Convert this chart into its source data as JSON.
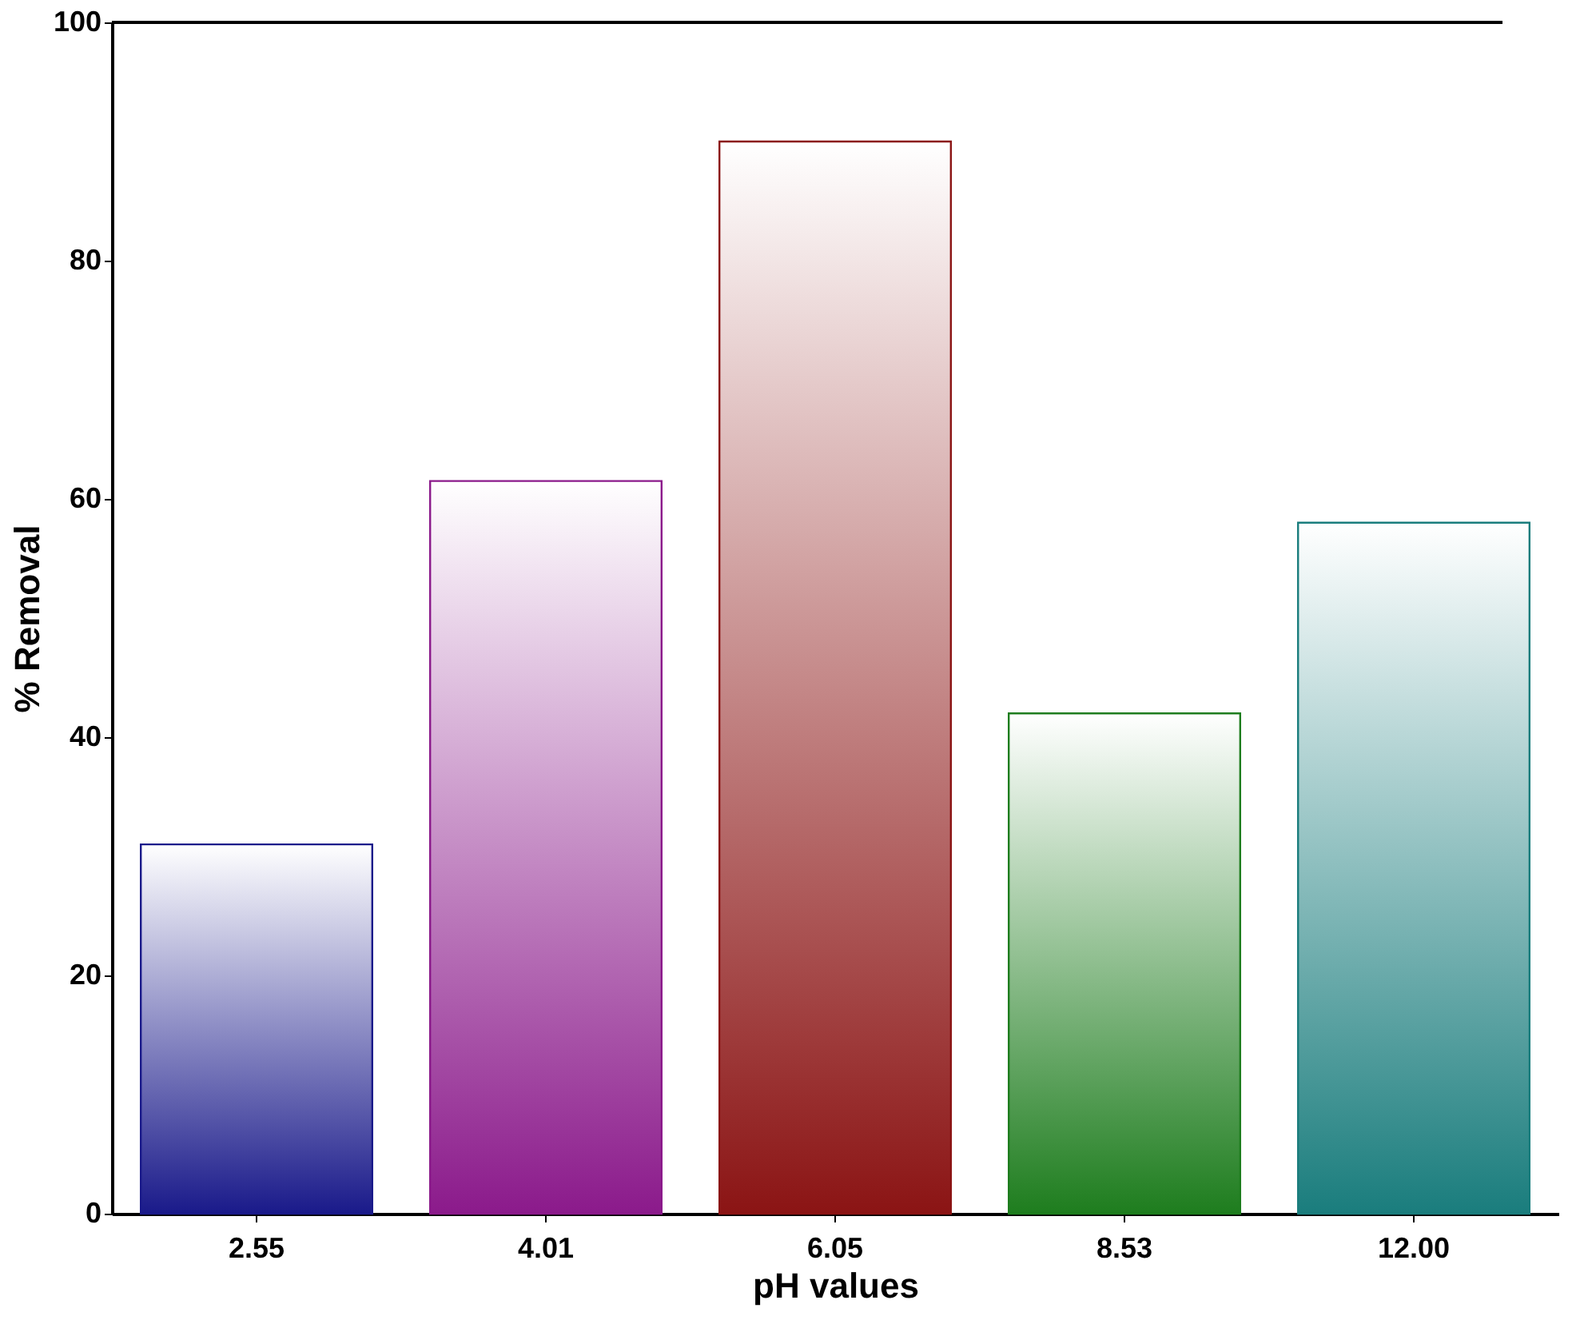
{
  "chart_data": {
    "type": "bar",
    "xlabel": "pH values",
    "ylabel": "% Removal",
    "categories": [
      "2.55",
      "4.01",
      "6.05",
      "8.53",
      "12.00"
    ],
    "values": [
      31,
      61.5,
      90,
      42,
      58
    ],
    "colors": [
      "#1a1a8a",
      "#8b1a8b",
      "#8b1414",
      "#1e7d1e",
      "#1a7d7d"
    ],
    "ylim": [
      0,
      100
    ],
    "yticks": [
      0,
      20,
      40,
      60,
      80,
      100
    ],
    "grid": false
  }
}
